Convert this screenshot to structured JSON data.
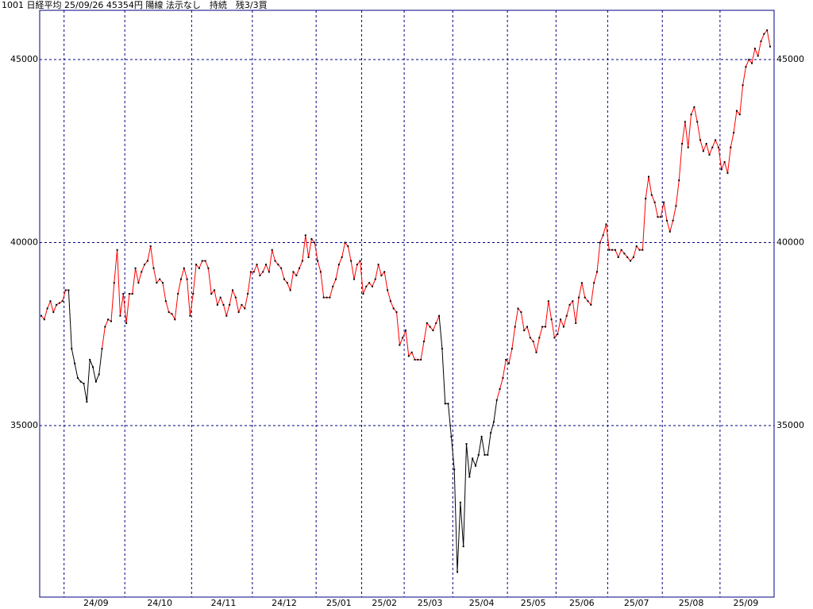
{
  "header": "1001 日経平均 25/09/26 45354円 陽線 法示なし　持続　残3/3買",
  "chart_data": {
    "type": "line",
    "color": "#ff0000",
    "alt_color": "#000000",
    "alt_ranges": [
      [
        9,
        20
      ],
      [
        131,
        150
      ]
    ],
    "marker_color": "#000000",
    "grid_color": "#000080",
    "ylim": [
      30315,
      46345
    ],
    "yticks": [
      35000,
      40000,
      45000
    ],
    "xgrid": [
      7.5,
      27.5,
      49.5,
      69.5,
      90.5,
      105.5,
      119.5,
      135.5,
      153.5,
      169.5,
      186.5,
      204.5,
      223.5
    ],
    "xticks": [
      {
        "value": 18,
        "label": "24/09"
      },
      {
        "value": 39,
        "label": "24/10"
      },
      {
        "value": 60,
        "label": "24/11"
      },
      {
        "value": 80,
        "label": "24/12"
      },
      {
        "value": 98,
        "label": "25/01"
      },
      {
        "value": 113,
        "label": "25/02"
      },
      {
        "value": 128,
        "label": "25/03"
      },
      {
        "value": 145,
        "label": "25/04"
      },
      {
        "value": 162,
        "label": "25/05"
      },
      {
        "value": 178,
        "label": "25/06"
      },
      {
        "value": 196,
        "label": "25/07"
      },
      {
        "value": 214,
        "label": "25/08"
      },
      {
        "value": 232,
        "label": "25/09"
      }
    ],
    "values": [
      38000,
      37900,
      38200,
      38400,
      38100,
      38300,
      38350,
      38400,
      38700,
      38700,
      37100,
      36700,
      36300,
      36200,
      36150,
      35650,
      36800,
      36600,
      36200,
      36400,
      37100,
      37700,
      37900,
      37850,
      38900,
      39800,
      38000,
      38600,
      37800,
      38600,
      38600,
      39300,
      38900,
      39200,
      39400,
      39500,
      39900,
      39300,
      38900,
      39000,
      38900,
      38400,
      38100,
      38050,
      37900,
      38600,
      39000,
      39300,
      39000,
      38000,
      38600,
      39400,
      39300,
      39500,
      39500,
      39300,
      38600,
      38700,
      38300,
      38500,
      38300,
      38000,
      38300,
      38700,
      38500,
      38100,
      38300,
      38200,
      38600,
      39200,
      39200,
      39400,
      39100,
      39200,
      39400,
      39200,
      39800,
      39500,
      39400,
      39300,
      39000,
      38900,
      38700,
      39200,
      39100,
      39300,
      39500,
      40200,
      39600,
      40100,
      40000,
      39500,
      39200,
      38500,
      38500,
      38500,
      38800,
      39000,
      39400,
      39600,
      40000,
      39900,
      39500,
      39000,
      39400,
      39500,
      38600,
      38800,
      38900,
      38800,
      39000,
      39400,
      39100,
      39200,
      38700,
      38400,
      38200,
      38100,
      37200,
      37400,
      37600,
      36900,
      37000,
      36800,
      36800,
      36800,
      37300,
      37800,
      37700,
      37600,
      37800,
      38000,
      37100,
      35600,
      35600,
      34700,
      33800,
      31000,
      32900,
      31700,
      34500,
      33600,
      34100,
      33900,
      34200,
      34700,
      34200,
      34200,
      34800,
      35100,
      35700,
      36000,
      36300,
      36800,
      36700,
      37100,
      37700,
      38200,
      38100,
      37600,
      37700,
      37400,
      37300,
      37000,
      37400,
      37700,
      37700,
      38400,
      37900,
      37400,
      37500,
      37900,
      37700,
      38000,
      38300,
      38400,
      37800,
      38500,
      38900,
      38500,
      38400,
      38300,
      38900,
      39200,
      40000,
      40200,
      40500,
      39800,
      39800,
      39800,
      39600,
      39800,
      39700,
      39600,
      39500,
      39600,
      39900,
      39800,
      39800,
      41200,
      41800,
      41300,
      41100,
      40700,
      40700,
      41100,
      40600,
      40300,
      40600,
      41000,
      41700,
      42700,
      43300,
      42600,
      43500,
      43700,
      43300,
      42800,
      42500,
      42700,
      42400,
      42600,
      42800,
      42600,
      42000,
      42200,
      41900,
      42600,
      43000,
      43600,
      43500,
      44300,
      44800,
      45000,
      44900,
      45300,
      45100,
      45500,
      45700,
      45800,
      45354
    ]
  }
}
